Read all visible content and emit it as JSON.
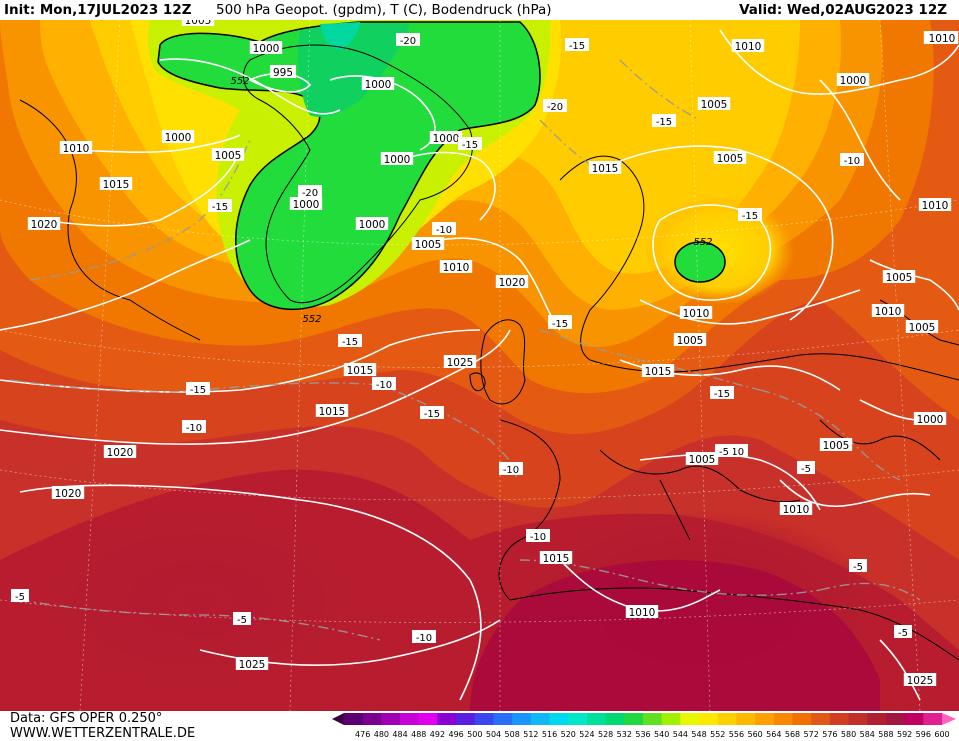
{
  "header": {
    "init": "Init: Mon,17JUL2023 12Z",
    "title": "500 hPa Geopot. (gpdm), T (C), Bodendruck (hPa)",
    "valid": "Valid: Wed,02AUG2023 12Z"
  },
  "footer": {
    "source": "Data: GFS OPER 0.250°",
    "site": "WWW.WETTERZENTRALE.DE"
  },
  "colorscale": {
    "ticks": [
      "476",
      "480",
      "484",
      "488",
      "492",
      "496",
      "500",
      "504",
      "508",
      "512",
      "516",
      "520",
      "524",
      "528",
      "532",
      "536",
      "540",
      "544",
      "548",
      "552",
      "556",
      "560",
      "564",
      "568",
      "572",
      "576",
      "580",
      "584",
      "588",
      "592",
      "596",
      "600"
    ],
    "colors": [
      "#3a0040",
      "#5a0070",
      "#7a0090",
      "#a000b4",
      "#c800d8",
      "#e000f0",
      "#8a00d0",
      "#5a1ee0",
      "#3a46f0",
      "#2a6ef8",
      "#1a96fa",
      "#10b8f8",
      "#00d8f0",
      "#00e8c8",
      "#00e098",
      "#00d870",
      "#20d840",
      "#60e020",
      "#a0f000",
      "#e8f800",
      "#ffe800",
      "#ffd000",
      "#ffb800",
      "#ffa000",
      "#f88800",
      "#f07000",
      "#e05818",
      "#d04020",
      "#c03028",
      "#b02030",
      "#a01840",
      "#c00060",
      "#e02090",
      "#ff60c0"
    ]
  },
  "pressure_labels": [
    "1005",
    "1000",
    "995",
    "1000",
    "1000",
    "1010",
    "1005",
    "1000",
    "1015",
    "1000",
    "1000",
    "1020",
    "1000",
    "1005",
    "1010",
    "1005",
    "1015",
    "1005",
    "1000",
    "1005",
    "1010",
    "1010",
    "1020",
    "1005",
    "1005",
    "1010",
    "1005",
    "1015",
    "1025",
    "1010",
    "1020",
    "1015",
    "1000",
    "1015",
    "1020",
    "1005",
    "1025",
    "1010",
    "1015",
    "1010",
    "1025",
    "1010",
    "1005"
  ],
  "temperature_labels": [
    "-20",
    "-15",
    "-20",
    "-15",
    "-15",
    "-20",
    "-15",
    "-10",
    "-15",
    "-10",
    "-15",
    "-15",
    "-10",
    "-15",
    "-15",
    "-10",
    "-10",
    "-15",
    "-10",
    "-15",
    "-10",
    "-5",
    "-10",
    "-5",
    "-5",
    "-5",
    "-5",
    "-5"
  ],
  "geopotential_labels": [
    "552",
    "552",
    "552"
  ]
}
